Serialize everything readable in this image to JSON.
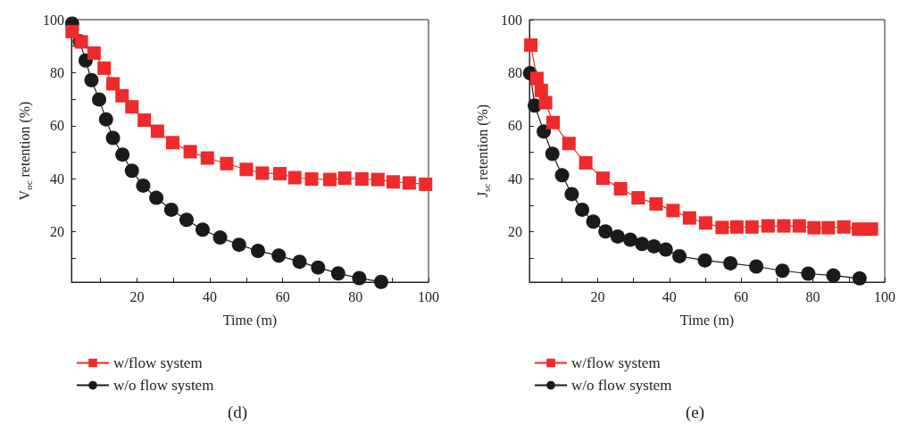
{
  "chart_data": [
    {
      "type": "line",
      "ylabel": "V$_{oc}$ retention (%)",
      "xlabel": "Time (m)",
      "annotations": [
        "(d)"
      ],
      "xlim": [
        2,
        100
      ],
      "ylim": [
        1,
        100
      ],
      "xticks": [
        {
          "value": 10,
          "label": null
        },
        20,
        {
          "value": 30,
          "label": null
        },
        40,
        {
          "value": 50,
          "label": null
        },
        60,
        {
          "value": 70,
          "label": null
        },
        80,
        {
          "value": 90,
          "label": null
        },
        100
      ],
      "yticks": [
        {
          "value": 10,
          "label": null
        },
        20,
        {
          "value": 30,
          "label": null
        },
        40,
        {
          "value": 50,
          "label": null
        },
        60,
        {
          "value": 70,
          "label": null
        },
        80,
        {
          "value": 90,
          "label": null
        },
        100
      ],
      "grid": false,
      "legend": "bottom left",
      "line_style": "solid",
      "series": [
        {
          "name": "w/flow system",
          "color": "#ee2a2a",
          "marker": "square",
          "x": [
            2.2,
            4.7,
            8.2,
            11,
            13.4,
            15.9,
            18.6,
            22,
            25.6,
            29.8,
            34.6,
            39.3,
            44.6,
            50,
            54.4,
            59.2,
            63.3,
            67.9,
            72.9,
            77,
            81.7,
            86.1,
            90.3,
            94.7,
            99.2
          ],
          "values": [
            95.5,
            91.6,
            87.4,
            81.7,
            75.8,
            71.3,
            67.1,
            62.1,
            57.9,
            53.6,
            50.2,
            47.8,
            45.7,
            43.5,
            42.1,
            41.9,
            40.4,
            39.9,
            39.7,
            40.2,
            39.9,
            39.7,
            38.8,
            38.4,
            37.9
          ]
        },
        {
          "name": "w/o flow system",
          "color": "#1a1a1a",
          "marker": "circle",
          "x": [
            2.2,
            4.3,
            5.9,
            7.5,
            9.6,
            11.5,
            13.4,
            16,
            18.6,
            21.7,
            25.3,
            29.4,
            33.6,
            38,
            42.8,
            48,
            53.2,
            58.9,
            64.6,
            69.7,
            75.2,
            81,
            87
          ],
          "values": [
            98.5,
            91.8,
            84.6,
            77.2,
            69.9,
            62.4,
            55.4,
            49.1,
            43,
            37.4,
            32.8,
            28.3,
            24.5,
            20.8,
            17.8,
            15.1,
            12.8,
            11,
            8.7,
            6.5,
            4.3,
            2.5,
            1.1
          ]
        }
      ]
    },
    {
      "type": "line",
      "ylabel": "J$_{sc}$ retention (%)",
      "xlabel": "Time (m)",
      "annotations": [
        "(e)"
      ],
      "xlim": [
        1,
        100
      ],
      "ylim": [
        1,
        100
      ],
      "xticks": [
        {
          "value": 10,
          "label": null
        },
        20,
        {
          "value": 30,
          "label": null
        },
        40,
        {
          "value": 50,
          "label": null
        },
        60,
        {
          "value": 70,
          "label": null
        },
        80,
        {
          "value": 90,
          "label": null
        },
        100
      ],
      "yticks": [
        {
          "value": 10,
          "label": null
        },
        20,
        {
          "value": 30,
          "label": null
        },
        40,
        {
          "value": 50,
          "label": null
        },
        60,
        {
          "value": 70,
          "label": null
        },
        80,
        {
          "value": 90,
          "label": null
        },
        100
      ],
      "grid": false,
      "legend": "bottom left",
      "line_style": "solid",
      "series": [
        {
          "name": "w/flow system",
          "color": "#ee2a2a",
          "marker": "square",
          "x": [
            1.4,
            3.1,
            4.3,
            5.5,
            7.6,
            12,
            16.7,
            21.5,
            26.4,
            31.3,
            36.3,
            41,
            45.6,
            50.1,
            54.7,
            58.8,
            63,
            67.5,
            71.9,
            76.2,
            80.3,
            84.3,
            88.6,
            92.7,
            96.3
          ],
          "values": [
            90.4,
            77.8,
            73.3,
            68.7,
            61.2,
            53.3,
            46,
            40.2,
            36.2,
            32.8,
            30.5,
            28,
            25.2,
            23.3,
            21.6,
            21.8,
            21.8,
            22.2,
            22.2,
            22.2,
            21.5,
            21.5,
            21.8,
            21,
            21
          ]
        },
        {
          "name": "w/o flow system",
          "color": "#1a1a1a",
          "marker": "circle",
          "x": [
            1.2,
            2.5,
            5,
            7.4,
            10.1,
            12.8,
            15.7,
            18.8,
            22.2,
            25.6,
            29.1,
            32.4,
            35.7,
            39,
            42.8,
            49.9,
            57,
            64.2,
            71.5,
            78.7,
            85.7,
            93
          ],
          "values": [
            79.8,
            67.6,
            57.8,
            49.4,
            41.3,
            34.2,
            28.3,
            23.8,
            20.1,
            18.2,
            17,
            15.4,
            14.5,
            13.3,
            10.8,
            9.2,
            8.1,
            6.9,
            5.3,
            4.2,
            3.5,
            2.4
          ]
        }
      ]
    }
  ]
}
